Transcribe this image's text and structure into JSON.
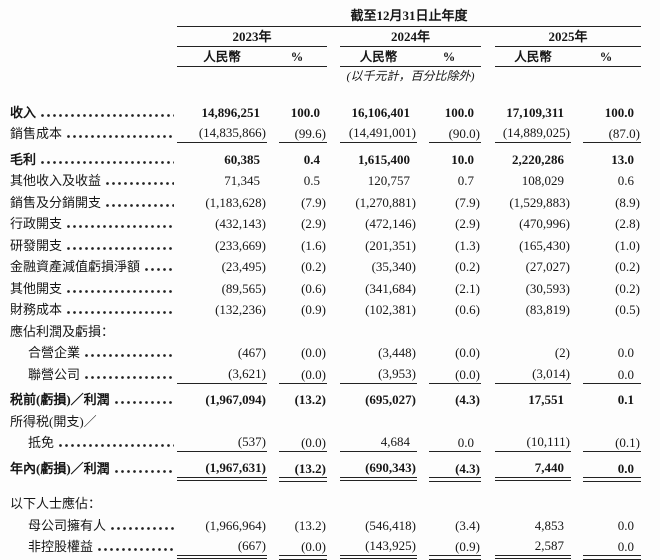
{
  "colors": {
    "text": "#161616",
    "rule": "#222222",
    "background": "#fdfdfd"
  },
  "header": {
    "title": "截至12月31日止年度",
    "years": [
      "2023年",
      "2024年",
      "2025年"
    ],
    "currency_label": "人民幣",
    "percent_label": "%",
    "note": "(以千元計，百分比除外)"
  },
  "table": {
    "rows": [
      {
        "label": "收入",
        "bold": true,
        "leader": true,
        "values": [
          "14,896,251",
          "100.0",
          "16,106,401",
          "100.0",
          "17,109,311",
          "100.0"
        ]
      },
      {
        "label": "銷售成本",
        "leader": true,
        "rule": "single",
        "values": [
          "(14,835,866)",
          "(99.6)",
          "(14,491,001)",
          "(90.0)",
          "(14,889,025)",
          "(87.0)"
        ]
      },
      {
        "label": "毛利",
        "bold": true,
        "leader": true,
        "gap": "s",
        "values": [
          "60,385",
          "0.4",
          "1,615,400",
          "10.0",
          "2,220,286",
          "13.0"
        ]
      },
      {
        "label": "其他收入及收益",
        "leader": true,
        "values": [
          "71,345",
          "0.5",
          "120,757",
          "0.7",
          "108,029",
          "0.6"
        ]
      },
      {
        "label": "銷售及分銷開支",
        "leader": true,
        "values": [
          "(1,183,628)",
          "(7.9)",
          "(1,270,881)",
          "(7.9)",
          "(1,529,883)",
          "(8.9)"
        ]
      },
      {
        "label": "行政開支",
        "leader": true,
        "values": [
          "(432,143)",
          "(2.9)",
          "(472,146)",
          "(2.9)",
          "(470,996)",
          "(2.8)"
        ]
      },
      {
        "label": "研發開支",
        "leader": true,
        "values": [
          "(233,669)",
          "(1.6)",
          "(201,351)",
          "(1.3)",
          "(165,430)",
          "(1.0)"
        ]
      },
      {
        "label": "金融資產減值虧損淨額",
        "leader": true,
        "values": [
          "(23,495)",
          "(0.2)",
          "(35,340)",
          "(0.2)",
          "(27,027)",
          "(0.2)"
        ]
      },
      {
        "label": "其他開支",
        "leader": true,
        "values": [
          "(89,565)",
          "(0.6)",
          "(341,684)",
          "(2.1)",
          "(30,593)",
          "(0.2)"
        ]
      },
      {
        "label": "財務成本",
        "leader": true,
        "values": [
          "(132,236)",
          "(0.9)",
          "(102,381)",
          "(0.6)",
          "(83,819)",
          "(0.5)"
        ]
      },
      {
        "label": "應佔利潤及虧損：",
        "values": null
      },
      {
        "label": "合營企業",
        "indent": true,
        "leader": true,
        "values": [
          "(467)",
          "(0.0)",
          "(3,448)",
          "(0.0)",
          "(2)",
          "0.0"
        ]
      },
      {
        "label": "聯營公司",
        "indent": true,
        "leader": true,
        "rule": "single",
        "values": [
          "(3,621)",
          "(0.0)",
          "(3,953)",
          "(0.0)",
          "(3,014)",
          "0.0"
        ]
      },
      {
        "label": "税前(虧損)／利潤",
        "bold": true,
        "leader": true,
        "gap": "s",
        "values": [
          "(1,967,094)",
          "(13.2)",
          "(695,027)",
          "(4.3)",
          "17,551",
          "0.1"
        ]
      },
      {
        "label": "所得税(開支)／",
        "values": null
      },
      {
        "label": "抵免",
        "indent": true,
        "leader": true,
        "rule": "single",
        "values": [
          "(537)",
          "(0.0)",
          "4,684",
          "0.0",
          "(10,111)",
          "(0.1)"
        ]
      },
      {
        "label": "年內(虧損)／利潤",
        "bold": true,
        "leader": true,
        "gap": "s",
        "rule": "double",
        "values": [
          "(1,967,631)",
          "(13.2)",
          "(690,343)",
          "(4.3)",
          "7,440",
          "0.0"
        ]
      },
      {
        "label": "以下人士應佔：",
        "gap": "l",
        "values": null
      },
      {
        "label": "母公司擁有人",
        "indent": true,
        "leader": true,
        "values": [
          "(1,966,964)",
          "(13.2)",
          "(546,418)",
          "(3.4)",
          "4,853",
          "0.0"
        ]
      },
      {
        "label": "非控股權益",
        "indent": true,
        "leader": true,
        "rule": "double",
        "values": [
          "(667)",
          "(0.0)",
          "(143,925)",
          "(0.9)",
          "2,587",
          "0.0"
        ]
      }
    ]
  }
}
